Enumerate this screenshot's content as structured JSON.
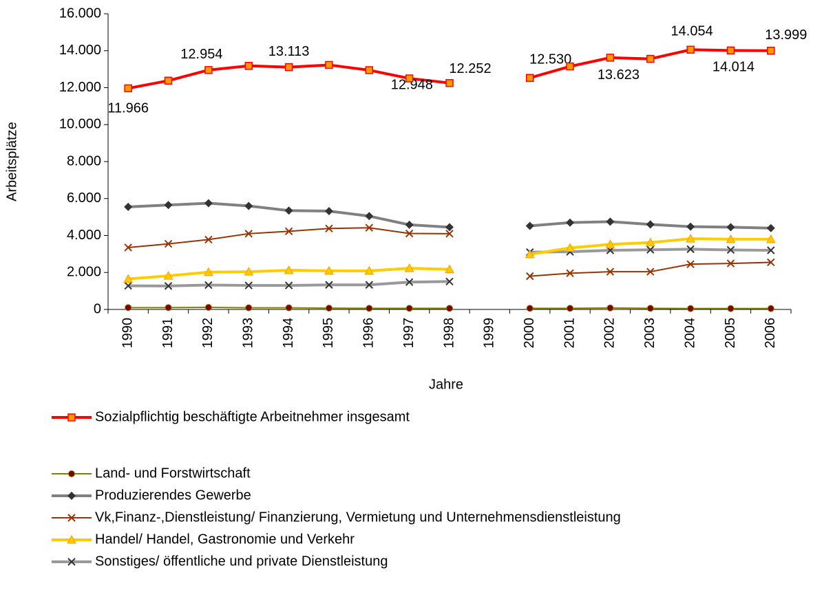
{
  "chart_data": {
    "type": "line",
    "categories": [
      "1990",
      "1991",
      "1992",
      "1993",
      "1994",
      "1995",
      "1996",
      "1997",
      "1998",
      "1999",
      "2000",
      "2001",
      "2002",
      "2003",
      "2004",
      "2005",
      "2006"
    ],
    "xlabel": "Jahre",
    "ylabel": "Arbeitsplätze",
    "ylim": [
      0,
      16000
    ],
    "yticks": [
      {
        "value": 0,
        "label": "0"
      },
      {
        "value": 2000,
        "label": "2.000"
      },
      {
        "value": 4000,
        "label": "4.000"
      },
      {
        "value": 6000,
        "label": "6.000"
      },
      {
        "value": 8000,
        "label": "8.000"
      },
      {
        "value": 10000,
        "label": "10.000"
      },
      {
        "value": 12000,
        "label": "12.000"
      },
      {
        "value": 14000,
        "label": "14.000"
      },
      {
        "value": 16000,
        "label": "16.000"
      }
    ],
    "grid": false,
    "series": [
      {
        "name": "Sozialpflichtig beschäftigte Arbeitnehmer insgesamt",
        "color": "#ff0000",
        "marker": "square",
        "marker_color": "#ff9900",
        "values": [
          11966,
          12380,
          12954,
          13180,
          13113,
          13230,
          12948,
          12500,
          12252,
          null,
          12530,
          13150,
          13623,
          13560,
          14054,
          14014,
          13999
        ],
        "value_labels": [
          "11.966",
          null,
          "12.954",
          null,
          "13.113",
          null,
          "12.948",
          null,
          "12.252",
          null,
          "12.530",
          null,
          "13.623",
          null,
          "14.054",
          "14.014",
          "13.999"
        ]
      },
      {
        "name": "Land- und Forstwirtschaft",
        "color": "#808000",
        "marker": "circle",
        "marker_color": "#800000",
        "values": [
          100,
          100,
          110,
          90,
          90,
          70,
          60,
          60,
          60,
          null,
          60,
          60,
          80,
          60,
          50,
          50,
          50
        ]
      },
      {
        "name": "Produzierendes Gewerbe",
        "color": "#808080",
        "marker": "diamond",
        "marker_color": "#333333",
        "values": [
          5550,
          5650,
          5750,
          5600,
          5350,
          5320,
          5050,
          4580,
          4450,
          null,
          4520,
          4700,
          4750,
          4600,
          4480,
          4450,
          4400
        ]
      },
      {
        "name": "Vk,Finanz-,Dienstleistung/ Finanzierung, Vermietung und Unternehmensdienstleistung",
        "color": "#993300",
        "marker": "x",
        "marker_color": "#993300",
        "values": [
          3350,
          3550,
          3780,
          4100,
          4230,
          4380,
          4420,
          4110,
          4100,
          null,
          1800,
          1960,
          2040,
          2040,
          2450,
          2490,
          2550
        ]
      },
      {
        "name": "Handel/ Handel, Gastronomie und Verkehr",
        "color": "#ffcc00",
        "marker": "triangle",
        "marker_color": "#ffcc00",
        "values": [
          1650,
          1820,
          2020,
          2040,
          2120,
          2090,
          2090,
          2230,
          2170,
          null,
          2980,
          3330,
          3520,
          3620,
          3830,
          3800,
          3800
        ]
      },
      {
        "name": "Sonstiges/ öffentliche und private Dienstleistung",
        "color": "#999999",
        "marker": "x",
        "marker_color": "#333333",
        "values": [
          1280,
          1270,
          1320,
          1300,
          1300,
          1330,
          1330,
          1480,
          1510,
          null,
          3100,
          3120,
          3200,
          3230,
          3260,
          3220,
          3200
        ]
      }
    ]
  }
}
